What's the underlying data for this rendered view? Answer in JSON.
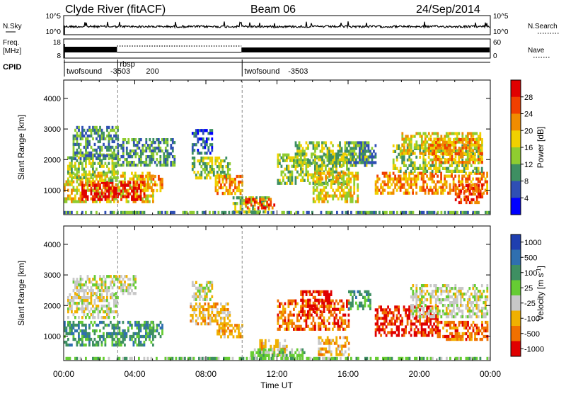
{
  "header": {
    "title": "Clyde River (fitACF)",
    "beam": "Beam 06",
    "date": "24/Sep/2014"
  },
  "summary": {
    "nsky_label": "N.Sky",
    "nsky_ticks": [
      "10^5",
      "10^0"
    ],
    "nsearch_label": "N.Search",
    "nsearch_ticks": [
      "10^5",
      "10^0"
    ],
    "freq_label_1": "Freq.",
    "freq_label_2": "[MHz]",
    "freq_ticks": [
      "18",
      "8"
    ],
    "nave_label": "Nave",
    "nave_ticks": [
      "60",
      "0"
    ],
    "cpid_label": "CPID",
    "cpid_segments": [
      {
        "label": "twofsound",
        "code": "-3503",
        "start_hour": 0
      },
      {
        "label": "rbsp",
        "code": "200",
        "start_hour": 3
      },
      {
        "label": "twofsound",
        "code": "-3503",
        "start_hour": 10
      }
    ]
  },
  "chart_data": [
    {
      "type": "heatmap",
      "name": "power-panel",
      "ylabel": "Slant Range [km]",
      "ylim": [
        200,
        4600
      ],
      "yticks": [
        "1000",
        "2000",
        "3000",
        "4000"
      ],
      "xlim": [
        0,
        24
      ],
      "colorbar_label": "Power [dB]",
      "colorbar_ticks": [
        "4",
        "8",
        "12",
        "16",
        "20",
        "24",
        "28"
      ],
      "colorbar_range": [
        0,
        32
      ],
      "colors": [
        "#0000ff",
        "#2f4fb4",
        "#3e8f62",
        "#8fcc30",
        "#f0d000",
        "#f08c00",
        "#f04000",
        "#e00000"
      ]
    },
    {
      "type": "heatmap",
      "name": "velocity-panel",
      "ylabel": "Slant Range [km]",
      "ylim": [
        200,
        4600
      ],
      "yticks": [
        "1000",
        "2000",
        "3000",
        "4000"
      ],
      "xlim": [
        0,
        24
      ],
      "xticks": [
        "00:00",
        "04:00",
        "08:00",
        "12:00",
        "16:00",
        "20:00",
        "00:00"
      ],
      "xlabel": "Time UT",
      "colorbar_label": "Velocity [m s",
      "colorbar_label_sup": "-1",
      "colorbar_label_end": "]",
      "colorbar_ticks": [
        "1000",
        "500",
        "100",
        "25",
        "-25",
        "-100",
        "-500",
        "-1000"
      ],
      "colors": [
        "#1f3fb0",
        "#2f6fb0",
        "#3e8f62",
        "#66cc33",
        "#c8c8c8",
        "#f0b000",
        "#f07000",
        "#e00000"
      ]
    }
  ]
}
